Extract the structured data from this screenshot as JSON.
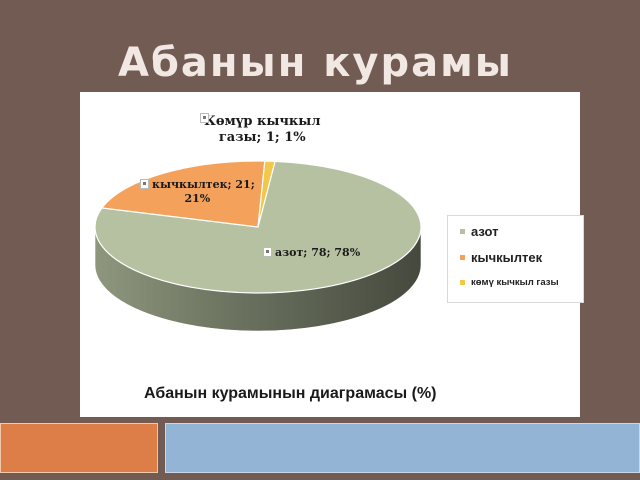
{
  "slide": {
    "title": "Абанын курамы",
    "caption": "Абанын курамынын диаграмасы (%)"
  },
  "chart_data": {
    "type": "pie",
    "title": "",
    "categories": [
      "азот",
      "кычкылтек",
      "көмүр кычкыл газы"
    ],
    "values": [
      78,
      21,
      1
    ],
    "unit": "%",
    "colors": [
      "#b6c1a2",
      "#f4a15c",
      "#f2c84a"
    ],
    "data_labels": [
      {
        "lines": [
          "азот; 78; 78%"
        ]
      },
      {
        "lines": [
          "кычкылтек; 21;",
          "21%"
        ]
      },
      {
        "lines": [
          "Көмүр кычкыл",
          "газы; 1; 1%"
        ]
      }
    ],
    "legend": {
      "position": "right",
      "items": [
        "азот",
        "кычкылтек",
        "көмү кычкыл газы"
      ]
    },
    "three_d": true
  },
  "colors": {
    "background": "#725b52",
    "title_text": "#f1e8e4",
    "bar_orange": "#dd7e49",
    "bar_blue": "#93b4d5"
  }
}
